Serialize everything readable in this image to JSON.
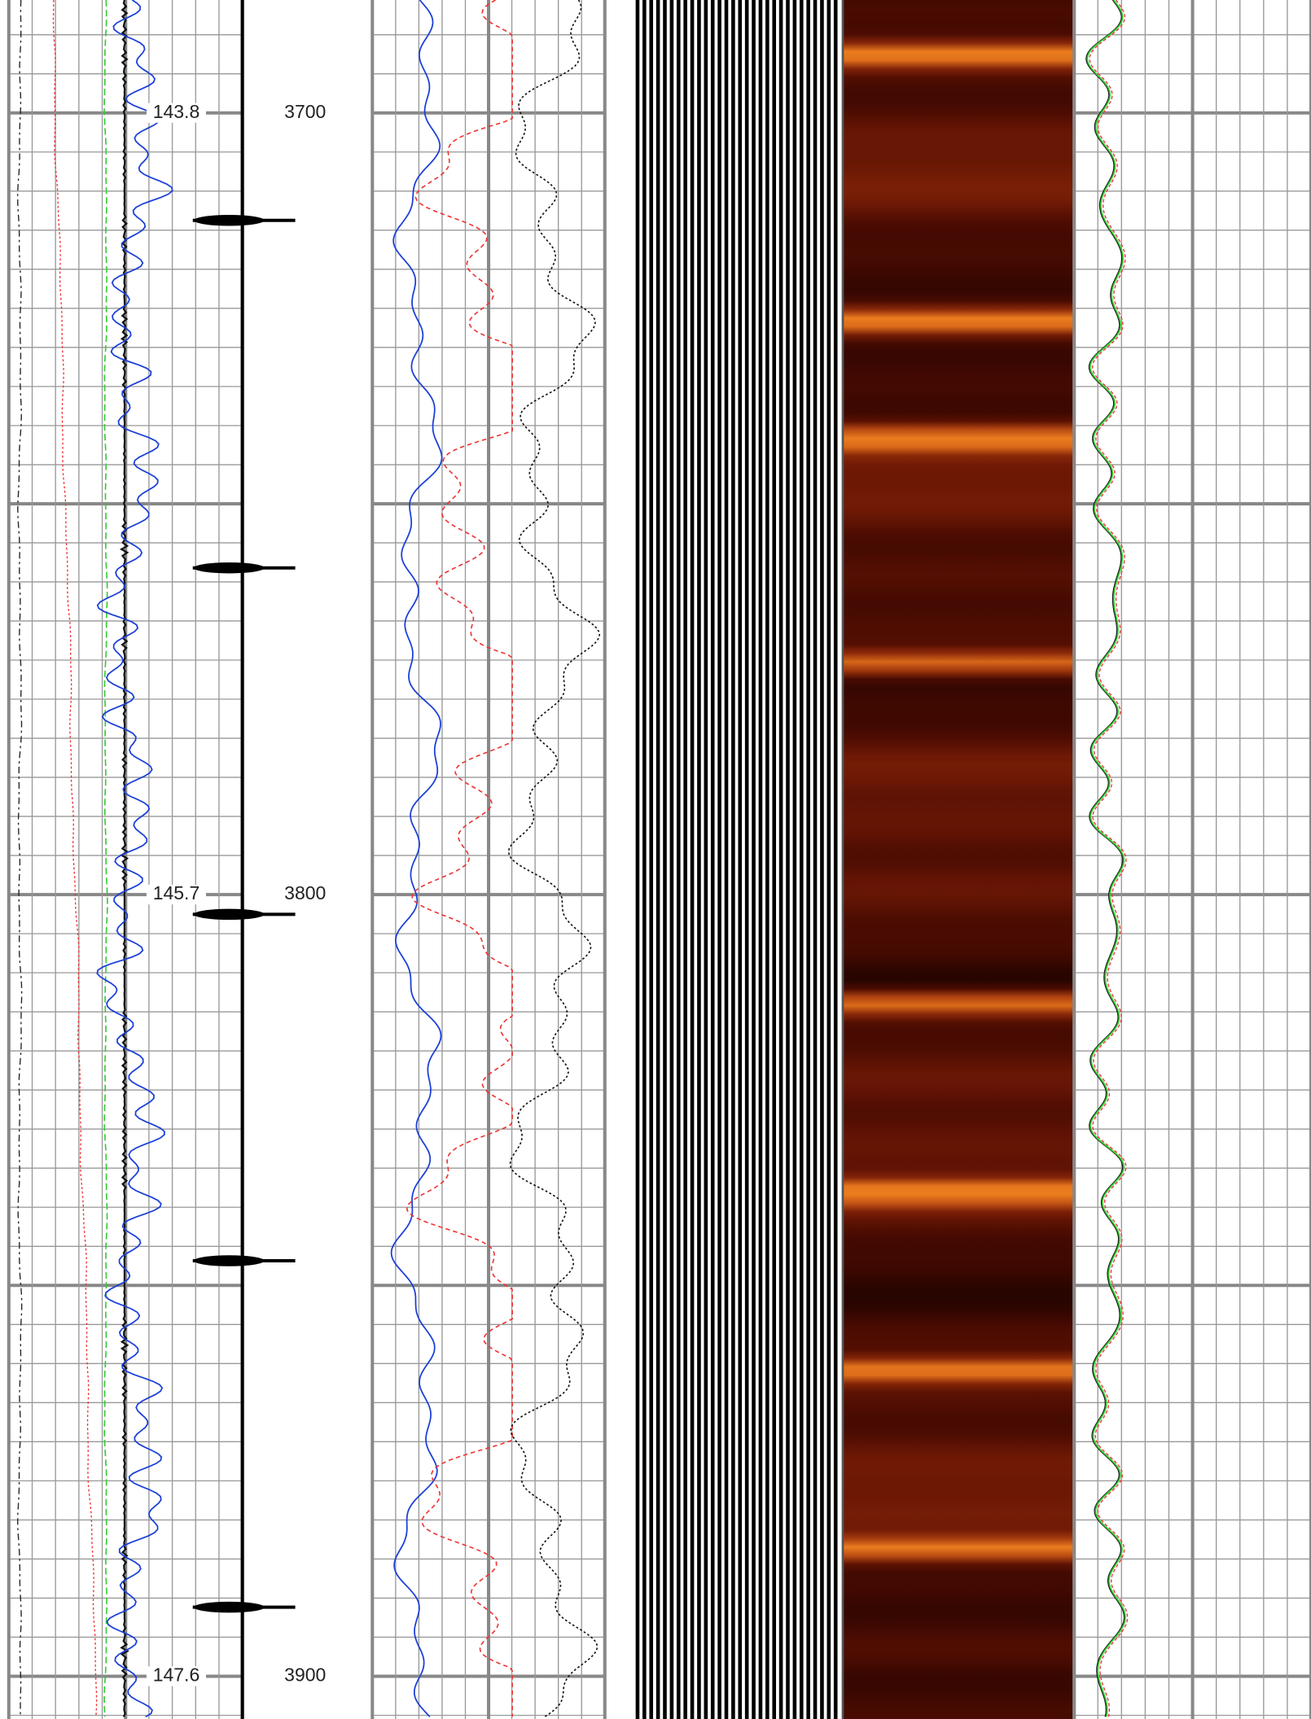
{
  "curve_track_labels": [
    "143.8",
    "145.7",
    "147.6"
  ],
  "depth_labels": [
    "3700",
    "3800",
    "3900"
  ]
}
